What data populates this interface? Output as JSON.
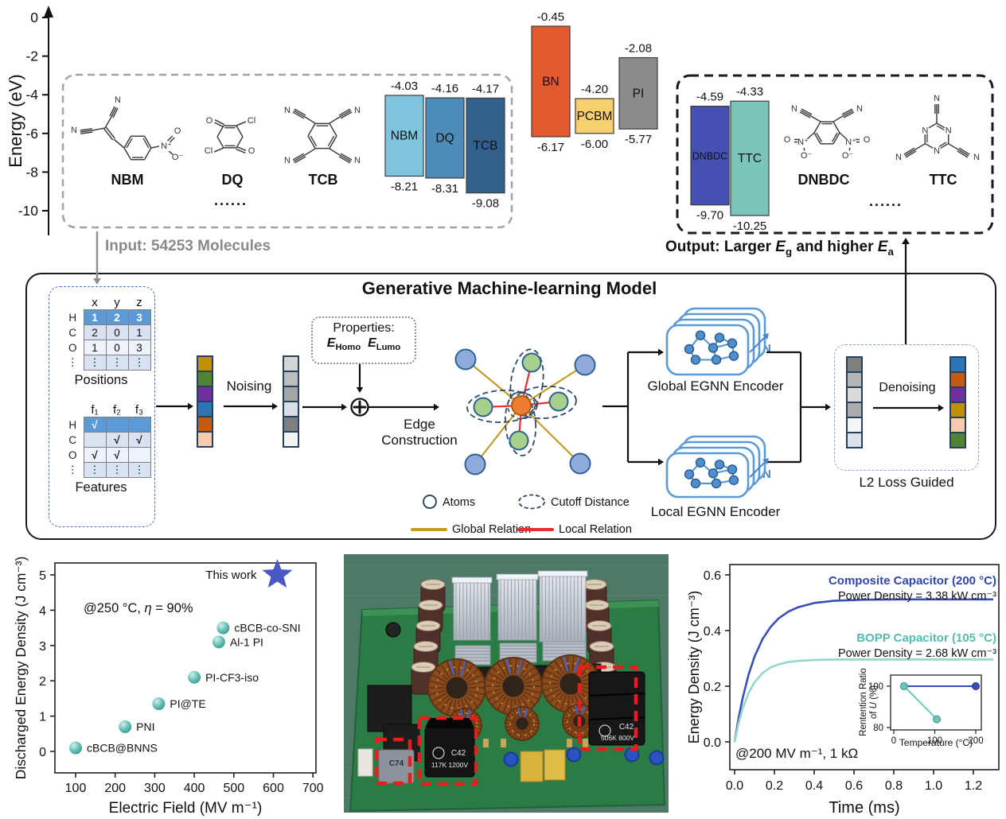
{
  "figure_labels": {
    "input_caption": "Input: 54253 Molecules",
    "output_caption": {
      "part1": "Output: Larger ",
      "e1": "E",
      "sub1": "g",
      "part2": " and higher ",
      "e2": "E",
      "sub2": "a"
    },
    "dots": "......"
  },
  "molecule_atoms": {
    "N": "N",
    "O": "O",
    "Cl": "Cl",
    "Np": "N⁺",
    "Om": "O⁻"
  },
  "chart_data": [
    {
      "id": "energy-levels",
      "type": "bar",
      "ylabel": "Energy (eV)",
      "ylim": [
        0,
        -11
      ],
      "yticks": [
        0,
        -2,
        -4,
        -6,
        -8,
        -10
      ],
      "molecule_labels": [
        "NBM",
        "DQ",
        "TCB",
        "DNBDC",
        "TTC"
      ],
      "bars": [
        {
          "name": "NBM",
          "group": "input",
          "lumo": -4.03,
          "homo": -8.21,
          "color": "#7fc4de"
        },
        {
          "name": "DQ",
          "group": "input",
          "lumo": -4.16,
          "homo": -8.31,
          "color": "#4d8cb8"
        },
        {
          "name": "TCB",
          "group": "input",
          "lumo": -4.17,
          "homo": -9.08,
          "color": "#33618e"
        },
        {
          "name": "BN",
          "group": "reference",
          "lumo": -0.45,
          "homo": -6.17,
          "color": "#e2582f"
        },
        {
          "name": "PCBM",
          "group": "reference",
          "lumo": -4.2,
          "homo": -6.0,
          "color": "#f8cf6d"
        },
        {
          "name": "PI",
          "group": "reference",
          "lumo": -2.08,
          "homo": -5.77,
          "color": "#8b8b8b"
        },
        {
          "name": "DNBDC",
          "group": "output",
          "lumo": -4.59,
          "homo": -9.7,
          "color": "#4450b2"
        },
        {
          "name": "TTC",
          "group": "output",
          "lumo": -4.33,
          "homo": -10.25,
          "color": "#7bc4ba"
        }
      ]
    },
    {
      "id": "discharged-energy-vs-field",
      "type": "scatter",
      "xlabel": "Electric Field (MV m⁻¹)",
      "ylabel": "Discharged Energy Density (J cm⁻³)",
      "annotation": {
        "prefix": "@250 °C, ",
        "eta": "η",
        "suffix": " = 90%"
      },
      "xlim": [
        50,
        700
      ],
      "ylim": [
        -0.5,
        5.5
      ],
      "xticks": [
        100,
        200,
        300,
        400,
        500,
        600,
        700
      ],
      "yticks": [
        0,
        1,
        2,
        3,
        4,
        5
      ],
      "point_color": "#5fbdb2",
      "points": [
        {
          "label": "cBCB@BNNS",
          "x": 100,
          "y": 0.1
        },
        {
          "label": "PNI",
          "x": 225,
          "y": 0.7
        },
        {
          "label": "PI@TE",
          "x": 310,
          "y": 1.35
        },
        {
          "label": "PI-CF3-iso",
          "x": 400,
          "y": 2.1
        },
        {
          "label": "Al-1 PI",
          "x": 462,
          "y": 3.1
        },
        {
          "label": "cBCB-co-SNI",
          "x": 473,
          "y": 3.5
        }
      ],
      "highlight": {
        "label": "This work",
        "x": 610,
        "y": 5.0,
        "marker": "star",
        "color": "#4a58c4"
      }
    },
    {
      "id": "energy-density-vs-time",
      "type": "line",
      "xlabel": "Time (ms)",
      "ylabel": "Energy Density (J cm⁻³)",
      "annotation": "@200 MV m⁻¹, 1 kΩ",
      "xlim": [
        0,
        1.3
      ],
      "ylim": [
        -0.04,
        0.64
      ],
      "xticks": [
        0.0,
        0.2,
        0.4,
        0.6,
        0.8,
        1.0,
        1.2
      ],
      "yticks": [
        0.0,
        0.2,
        0.4,
        0.6
      ],
      "x": [
        0,
        0.02,
        0.04,
        0.07,
        0.1,
        0.14,
        0.18,
        0.22,
        0.27,
        0.32,
        0.4,
        0.5,
        0.65,
        0.85,
        1.1,
        1.3
      ],
      "series": [
        {
          "name": "Composite Capacitor (200 °C)",
          "caption": "Power Density = 3.38 kW cm⁻³",
          "color": "#3a4db8",
          "label_color": "#2f45b8",
          "y": [
            0,
            0.085,
            0.156,
            0.241,
            0.306,
            0.369,
            0.412,
            0.443,
            0.468,
            0.484,
            0.499,
            0.507,
            0.511,
            0.512,
            0.512,
            0.512
          ]
        },
        {
          "name": "BOPP Capacitor (105 °C)",
          "caption": "Power Density = 2.68 kW cm⁻³",
          "color": "#93d6cd",
          "label_color": "#52bdb0",
          "y": [
            0,
            0.067,
            0.119,
            0.175,
            0.214,
            0.247,
            0.267,
            0.278,
            0.287,
            0.291,
            0.294,
            0.296,
            0.296,
            0.296,
            0.296,
            0.296
          ]
        }
      ],
      "inset": {
        "ylabel_line1": "Rentention Ratio",
        "ylabel_line2_prefix": "of ",
        "ylabel_U": "U",
        "ylabel_line2_suffix": " (%)",
        "xlabel": "Temperature (°C)",
        "xlim": [
          -15,
          215
        ],
        "ylim": [
          78,
          104
        ],
        "xticks": [
          0,
          100,
          200
        ],
        "yticks": [
          80,
          100
        ],
        "series": [
          {
            "name": "Composite",
            "color": "#3a4db8",
            "points": [
              [
                25,
                100
              ],
              [
                200,
                100
              ]
            ]
          },
          {
            "name": "BOPP",
            "color": "#6cc5bb",
            "points": [
              [
                25,
                100
              ],
              [
                105,
                84
              ]
            ]
          }
        ]
      }
    }
  ],
  "ml_model": {
    "title": "Generative Machine-learning Model",
    "positions_table": {
      "caption": "Positions",
      "col_headers": [
        "x",
        "y",
        "z"
      ],
      "row_headers": [
        "H",
        "C",
        "O",
        "⋮"
      ],
      "rows": [
        [
          "1",
          "2",
          "3"
        ],
        [
          "2",
          "0",
          "1"
        ],
        [
          "1",
          "0",
          "3"
        ],
        [
          "⋮",
          "⋮",
          "⋮"
        ]
      ]
    },
    "features_table": {
      "caption": "Features",
      "col_headers": [
        "f₁",
        "f₂",
        "f₃"
      ],
      "row_headers": [
        "H",
        "C",
        "O",
        "⋮"
      ],
      "rows": [
        [
          "√",
          "",
          ""
        ],
        [
          "",
          "√",
          "√"
        ],
        [
          "√",
          "√",
          ""
        ],
        [
          "⋮",
          "⋮",
          "⋮"
        ]
      ]
    },
    "noising_label": "Noising",
    "properties": {
      "title": "Properties:",
      "e1": "E",
      "sub1": "Homo",
      "e2": "E",
      "sub2": "Lumo"
    },
    "edge_construction_label": "Edge Construction",
    "legend": {
      "atoms": "Atoms",
      "cutoff": "Cutoff Distance",
      "global": "Global Relation",
      "local": "Local Relation"
    },
    "global_encoder_label": "Global EGNN Encoder",
    "local_encoder_label": "Local EGNN Encoder",
    "n_label": "N",
    "denoising_label": "Denoising",
    "l2_label": "L2 Loss Guided",
    "vectors": {
      "clean": [
        "#bf9000",
        "#548235",
        "#7030a0",
        "#2e75b6",
        "#c55a11",
        "#f8cbad"
      ],
      "noised": [
        "#d6d6d6",
        "#bdbdbd",
        "#a8a6a4",
        "#d9dee8",
        "#7f7f7f",
        "#f3f3f3"
      ],
      "latent": [
        "#7f7f7f",
        "#b5b5b5",
        "#dadada",
        "#ababab",
        "#f5f5f5",
        "#dde3ec"
      ],
      "denoised": [
        "#2e75b6",
        "#c55a11",
        "#7030a0",
        "#bf9000",
        "#f8cbad",
        "#548235"
      ]
    },
    "graph_colors": {
      "center": "#ed7d31",
      "inner": "#a8d08d",
      "outer": "#8faadc",
      "global_edge": "#c49a22",
      "local_edge": "#e53030"
    }
  },
  "photo": {
    "cap_left": "C74",
    "cap_mid_top": "C42",
    "cap_mid_bottom": "117K 1200V",
    "cap_right_top": "C42",
    "cap_right_bottom": "506K 800V"
  }
}
